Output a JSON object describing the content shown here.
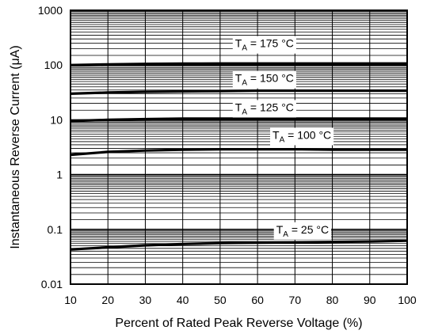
{
  "chart_data": {
    "type": "line",
    "title": "",
    "xlabel": "Percent of Rated Peak Reverse Voltage (%)",
    "ylabel": "Instantaneous Reverse Current (μA)",
    "x_scale": "linear",
    "y_scale": "log",
    "xlim": [
      10,
      100
    ],
    "ylim": [
      0.01,
      1000
    ],
    "grid": true,
    "x_ticks": [
      10,
      20,
      30,
      40,
      50,
      60,
      70,
      80,
      90,
      100
    ],
    "x_tick_labels": [
      "10",
      "20",
      "30",
      "40",
      "50",
      "60",
      "70",
      "80",
      "90",
      "100"
    ],
    "y_ticks": [
      0.01,
      0.1,
      1,
      10,
      100,
      1000
    ],
    "y_tick_labels": [
      "0.01",
      "0.1",
      "1",
      "10",
      "100",
      "1000"
    ],
    "series": [
      {
        "name": "TA = 175 °C",
        "label_main": "T",
        "label_sub": "A",
        "label_rest": " = 175 °C",
        "label_x": 54,
        "label_y": 250,
        "x": [
          10,
          20,
          30,
          40,
          50,
          60,
          70,
          80,
          90,
          100
        ],
        "y": [
          100,
          103,
          105,
          106,
          107,
          107,
          107,
          107,
          107,
          107
        ]
      },
      {
        "name": "TA = 150 °C",
        "label_main": "T",
        "label_sub": "A",
        "label_rest": " = 150 °C",
        "label_x": 54,
        "label_y": 58,
        "x": [
          10,
          20,
          30,
          40,
          50,
          60,
          70,
          80,
          90,
          100
        ],
        "y": [
          30,
          31.5,
          32.5,
          33,
          33.5,
          34,
          34,
          34,
          34,
          34
        ]
      },
      {
        "name": "TA = 125 °C",
        "label_main": "T",
        "label_sub": "A",
        "label_rest": " = 125 °C",
        "label_x": 54,
        "label_y": 17,
        "x": [
          10,
          20,
          30,
          40,
          50,
          60,
          70,
          80,
          90,
          100
        ],
        "y": [
          9.5,
          10,
          10.3,
          10.5,
          10.5,
          10.5,
          10.5,
          10.5,
          10.5,
          10.5
        ]
      },
      {
        "name": "TA = 100 °C",
        "label_main": "T",
        "label_sub": "A",
        "label_rest": " = 100 °C",
        "label_x": 64,
        "label_y": 5.3,
        "x": [
          10,
          20,
          30,
          40,
          50,
          60,
          70,
          80,
          90,
          100
        ],
        "y": [
          2.3,
          2.6,
          2.75,
          2.85,
          2.9,
          2.9,
          2.9,
          2.85,
          2.85,
          2.85
        ]
      },
      {
        "name": "TA = 25 °C",
        "label_main": "T",
        "label_sub": "A",
        "label_rest": " = 25 °C",
        "label_x": 65,
        "label_y": 0.1,
        "x": [
          10,
          20,
          30,
          40,
          50,
          60,
          70,
          80,
          90,
          100
        ],
        "y": [
          0.043,
          0.047,
          0.051,
          0.054,
          0.056,
          0.057,
          0.058,
          0.059,
          0.06,
          0.062
        ]
      }
    ]
  }
}
